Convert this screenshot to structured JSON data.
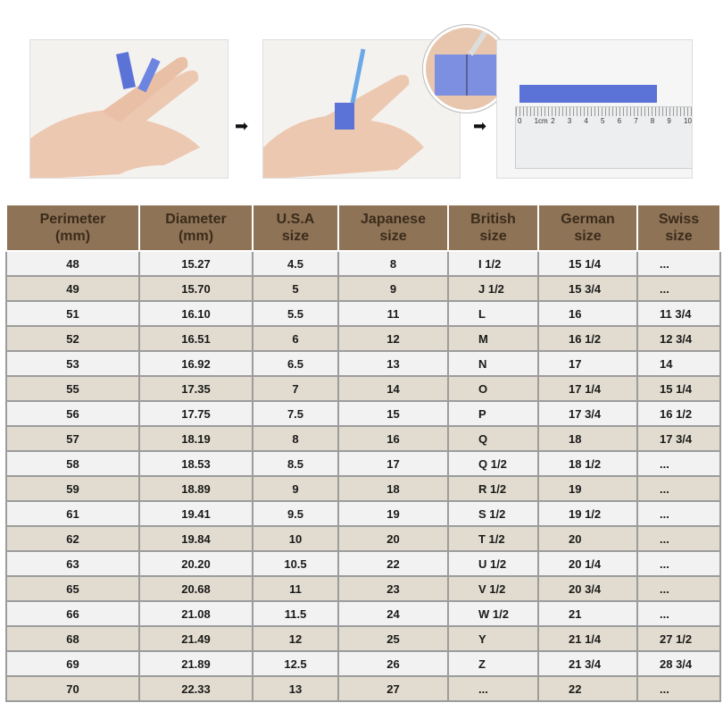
{
  "steps": {
    "arrow_icon": "right-arrow-icon",
    "ruler_labels": [
      "0",
      "1cm",
      "2",
      "3",
      "4",
      "5",
      "6",
      "7",
      "8",
      "9",
      "10"
    ],
    "tape_color": "#5b73d6"
  },
  "table": {
    "headers": [
      [
        "Perimeter",
        "(mm)"
      ],
      [
        "Diameter",
        "(mm)"
      ],
      [
        "U.S.A",
        "size"
      ],
      [
        "Japanese",
        "size"
      ],
      [
        "British",
        "size"
      ],
      [
        "German",
        "size"
      ],
      [
        "Swiss",
        "size"
      ]
    ],
    "rows": [
      [
        "48",
        "15.27",
        "4.5",
        "8",
        "I 1/2",
        "15 1/4",
        "..."
      ],
      [
        "49",
        "15.70",
        "5",
        "9",
        "J 1/2",
        "15 3/4",
        "..."
      ],
      [
        "51",
        "16.10",
        "5.5",
        "11",
        "L",
        "16",
        "11 3/4"
      ],
      [
        "52",
        "16.51",
        "6",
        "12",
        "M",
        "16 1/2",
        "12 3/4"
      ],
      [
        "53",
        "16.92",
        "6.5",
        "13",
        "N",
        "17",
        "14"
      ],
      [
        "55",
        "17.35",
        "7",
        "14",
        "O",
        "17 1/4",
        "15 1/4"
      ],
      [
        "56",
        "17.75",
        "7.5",
        "15",
        "P",
        "17 3/4",
        "16 1/2"
      ],
      [
        "57",
        "18.19",
        "8",
        "16",
        "Q",
        "18",
        "17 3/4"
      ],
      [
        "58",
        "18.53",
        "8.5",
        "17",
        "Q 1/2",
        "18 1/2",
        "..."
      ],
      [
        "59",
        "18.89",
        "9",
        "18",
        "R 1/2",
        "19",
        "..."
      ],
      [
        "61",
        "19.41",
        "9.5",
        "19",
        "S 1/2",
        "19 1/2",
        "..."
      ],
      [
        "62",
        "19.84",
        "10",
        "20",
        "T 1/2",
        "20",
        "..."
      ],
      [
        "63",
        "20.20",
        "10.5",
        "22",
        "U 1/2",
        "20 1/4",
        "..."
      ],
      [
        "65",
        "20.68",
        "11",
        "23",
        "V 1/2",
        "20 3/4",
        "..."
      ],
      [
        "66",
        "21.08",
        "11.5",
        "24",
        "W 1/2",
        "21",
        "..."
      ],
      [
        "68",
        "21.49",
        "12",
        "25",
        "Y",
        "21 1/4",
        "27 1/2"
      ],
      [
        "69",
        "21.89",
        "12.5",
        "26",
        "Z",
        "21 3/4",
        "28 3/4"
      ],
      [
        "70",
        "22.33",
        "13",
        "27",
        "...",
        "22",
        "..."
      ]
    ],
    "colors": {
      "header": "#8e7356",
      "row_light": "#f2f2f2",
      "row_dark": "#e1dccf"
    }
  }
}
